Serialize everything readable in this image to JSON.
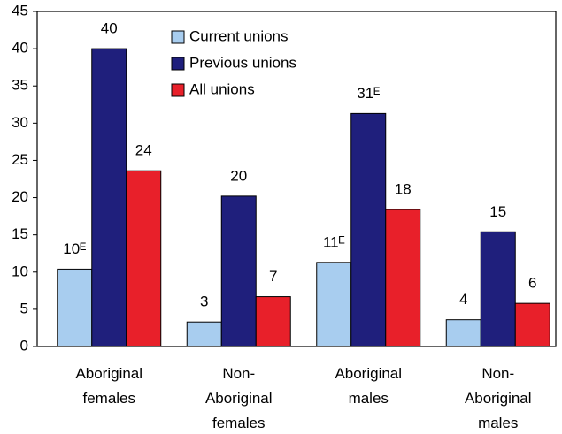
{
  "chart_data": {
    "type": "bar",
    "categories": [
      "Aboriginal females",
      "Non-Aboriginal females",
      "Aboriginal males",
      "Non-Aboriginal males"
    ],
    "series": [
      {
        "name": "Current unions",
        "color": "#a8cdef",
        "values": [
          10.4,
          3.3,
          11.3,
          3.6
        ],
        "value_labels": [
          "10ᴱ",
          "3",
          "11ᴱ",
          "4"
        ]
      },
      {
        "name": "Previous unions",
        "color": "#1f1f7c",
        "values": [
          40,
          20.2,
          31.3,
          15.4
        ],
        "value_labels": [
          "40",
          "20",
          "31ᴱ",
          "15"
        ]
      },
      {
        "name": "All unions",
        "color": "#e8202a",
        "values": [
          23.6,
          6.7,
          18.4,
          5.8
        ],
        "value_labels": [
          "24",
          "7",
          "18",
          "6"
        ]
      }
    ],
    "ylim": [
      0,
      45
    ],
    "yticks": [
      0,
      5,
      10,
      15,
      20,
      25,
      30,
      35,
      40,
      45
    ]
  }
}
